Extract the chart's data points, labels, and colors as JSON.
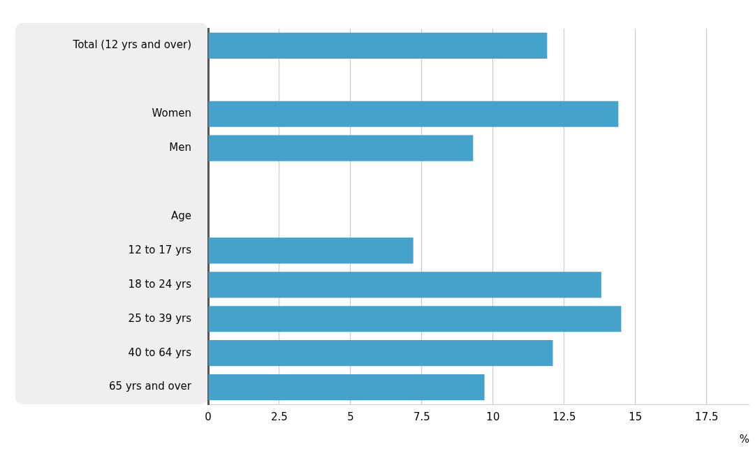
{
  "chart_data": {
    "type": "bar",
    "orientation": "horizontal",
    "categories": [
      "Total (12 yrs and over)",
      null,
      "Women",
      "Men",
      null,
      "Age",
      "12 to 17 yrs",
      "18 to 24 yrs",
      "25 to 39 yrs",
      "40 to 64 yrs",
      "65 yrs and over"
    ],
    "values": [
      11.9,
      null,
      14.4,
      9.3,
      null,
      null,
      7.2,
      13.8,
      14.5,
      12.1,
      9.7
    ],
    "color": "#45a2cb",
    "xlim": [
      0,
      19
    ],
    "xticks": [
      0,
      2.5,
      5,
      7.5,
      10,
      12.5,
      15,
      17.5
    ],
    "xlabel": "%",
    "grid": "x",
    "legend": false
  }
}
